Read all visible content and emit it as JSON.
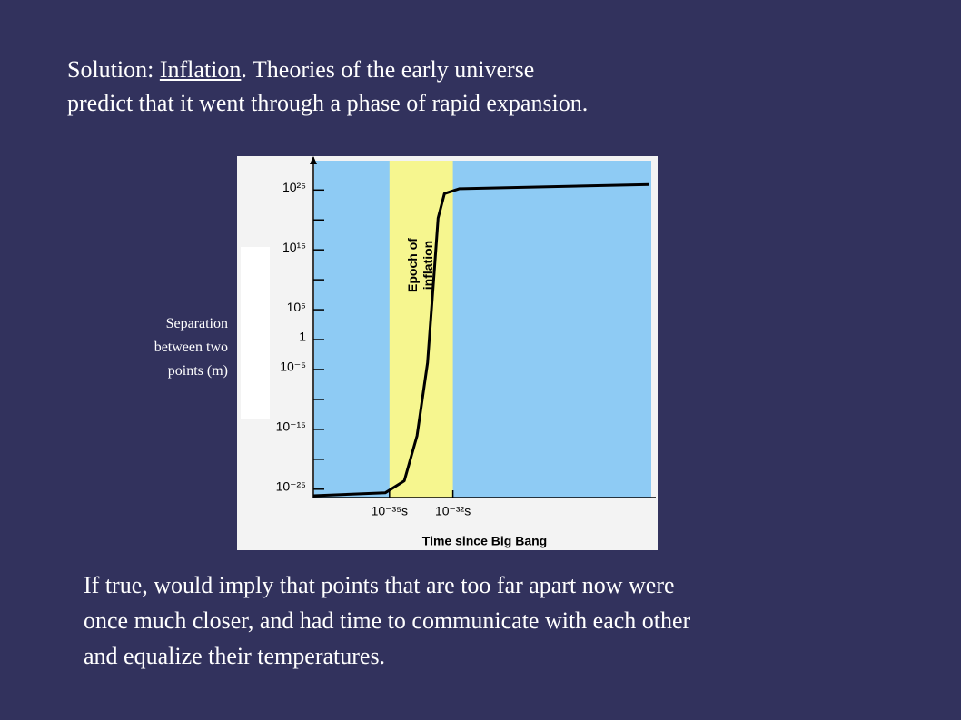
{
  "slide": {
    "intro": {
      "prefix": "Solution: ",
      "link": "Inflation",
      "rest": ".  Theories of the early universe",
      "line2": "predict that it went through a phase of rapid expansion."
    },
    "conclusion": [
      "If true, would imply that points that are too far apart now were",
      "once much closer, and had time to communicate with each other",
      "and equalize their temperatures."
    ]
  },
  "chart_data": {
    "type": "line",
    "xlabel": "Time since Big Bang",
    "ylabel": "Separation between two points (m)",
    "xscale": "log",
    "yscale": "log",
    "x": [
      2.5e-39,
      6.3e-36,
      5e-35,
      2e-34,
      6.3e-34,
      1.3e-33,
      2e-33,
      4e-33,
      2e-32,
      2e-23
    ],
    "values": [
      8e-27,
      2.5e-26,
      2.5e-24,
      8e-17,
      0.00013,
      160000000000.0,
      2e+20,
      2.5e+24,
      1.6e+25,
      8e+25
    ],
    "color": "#000000",
    "plot_color": "#8ecbf4",
    "xlim": [
      2.5e-39,
      4e-23
    ],
    "ylim": [
      4e-27,
      1.6e+30
    ],
    "xticks": [
      {
        "value": 1e-35,
        "label": "10⁻³⁵s"
      },
      {
        "value": 1e-32,
        "label": "10⁻³²s"
      }
    ],
    "yticks": [
      {
        "value": 1e+25,
        "label": "10²⁵"
      },
      {
        "value": 1000000000000000.0,
        "label": "10¹⁵"
      },
      {
        "value": 100000.0,
        "label": "10⁵"
      },
      1,
      {
        "value": 1e-05,
        "label": "10⁻⁵"
      },
      {
        "value": 1e-15,
        "label": "10⁻¹⁵"
      },
      {
        "value": 1e-25,
        "label": "10⁻²⁵"
      }
    ],
    "minor_yticks": [
      1e+20,
      10000000000.0,
      1e-10,
      1e-20
    ],
    "band": {
      "from": 1e-35,
      "to": 1e-32,
      "label": [
        "Epoch of",
        "inflation"
      ],
      "color": "#f6f68f"
    }
  }
}
